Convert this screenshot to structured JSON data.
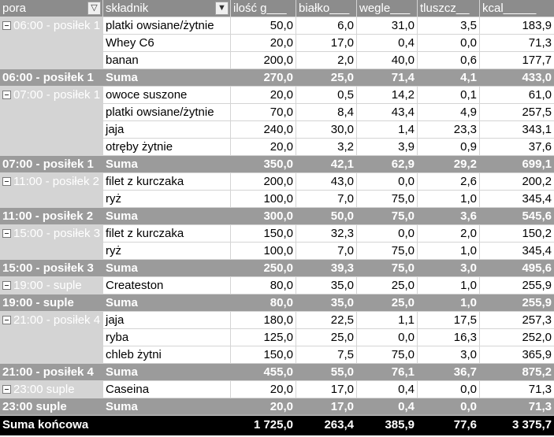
{
  "columns": [
    "pora",
    "składnik",
    "ilość g___",
    "białko___",
    "wegle___",
    "tluszcz__",
    "kcal_____"
  ],
  "rows": [
    {
      "type": "item",
      "pora": "06:00 - posiłek 1",
      "cells": [
        "platki owsiane/żytnie",
        "50,0",
        "6,0",
        "31,0",
        "3,5",
        "183,9"
      ]
    },
    {
      "type": "item",
      "pora": "",
      "cells": [
        "Whey C6",
        "20,0",
        "17,0",
        "0,4",
        "0,0",
        "71,3"
      ]
    },
    {
      "type": "item",
      "pora": "",
      "cells": [
        "banan",
        "200,0",
        "2,0",
        "40,0",
        "0,6",
        "177,7"
      ]
    },
    {
      "type": "sum",
      "pora": "06:00 - posiłek 1",
      "cells": [
        "Suma",
        "270,0",
        "25,0",
        "71,4",
        "4,1",
        "433,0"
      ]
    },
    {
      "type": "item",
      "pora": "07:00 - posiłek 1",
      "cells": [
        "owoce suszone",
        "20,0",
        "0,5",
        "14,2",
        "0,1",
        "61,0"
      ]
    },
    {
      "type": "item",
      "pora": "",
      "cells": [
        "platki owsiane/żytnie",
        "70,0",
        "8,4",
        "43,4",
        "4,9",
        "257,5"
      ]
    },
    {
      "type": "item",
      "pora": "",
      "cells": [
        "jaja",
        "240,0",
        "30,0",
        "1,4",
        "23,3",
        "343,1"
      ]
    },
    {
      "type": "item",
      "pora": "",
      "cells": [
        "otręby żytnie",
        "20,0",
        "3,2",
        "3,9",
        "0,9",
        "37,6"
      ]
    },
    {
      "type": "sum",
      "pora": "07:00 - posiłek 1",
      "cells": [
        "Suma",
        "350,0",
        "42,1",
        "62,9",
        "29,2",
        "699,1"
      ]
    },
    {
      "type": "item",
      "pora": "11:00 - posiłek 2",
      "cells": [
        "filet z kurczaka",
        "200,0",
        "43,0",
        "0,0",
        "2,6",
        "200,2"
      ]
    },
    {
      "type": "item",
      "pora": "",
      "cells": [
        "ryż",
        "100,0",
        "7,0",
        "75,0",
        "1,0",
        "345,4"
      ]
    },
    {
      "type": "sum",
      "pora": "11:00 - posiłek 2",
      "cells": [
        "Suma",
        "300,0",
        "50,0",
        "75,0",
        "3,6",
        "545,6"
      ]
    },
    {
      "type": "item",
      "pora": "15:00 - posiłek 3",
      "cells": [
        "filet z kurczaka",
        "150,0",
        "32,3",
        "0,0",
        "2,0",
        "150,2"
      ]
    },
    {
      "type": "item",
      "pora": "",
      "cells": [
        "ryż",
        "100,0",
        "7,0",
        "75,0",
        "1,0",
        "345,4"
      ]
    },
    {
      "type": "sum",
      "pora": "15:00 - posiłek 3",
      "cells": [
        "Suma",
        "250,0",
        "39,3",
        "75,0",
        "3,0",
        "495,6"
      ]
    },
    {
      "type": "item",
      "pora": "19:00 - suple",
      "cells": [
        "Createston",
        "80,0",
        "35,0",
        "25,0",
        "1,0",
        "255,9"
      ]
    },
    {
      "type": "sum",
      "pora": "19:00 - suple",
      "cells": [
        "Suma",
        "80,0",
        "35,0",
        "25,0",
        "1,0",
        "255,9"
      ]
    },
    {
      "type": "item",
      "pora": "21:00 - posiłek 4",
      "cells": [
        "jaja",
        "180,0",
        "22,5",
        "1,1",
        "17,5",
        "257,3"
      ]
    },
    {
      "type": "item",
      "pora": "",
      "cells": [
        "ryba",
        "125,0",
        "25,0",
        "0,0",
        "16,3",
        "252,0"
      ]
    },
    {
      "type": "item",
      "pora": "",
      "cells": [
        "chleb żytni",
        "150,0",
        "7,5",
        "75,0",
        "3,0",
        "365,9"
      ]
    },
    {
      "type": "sum",
      "pora": "21:00 - posiłek 4",
      "cells": [
        "Suma",
        "455,0",
        "55,0",
        "76,1",
        "36,7",
        "875,2"
      ]
    },
    {
      "type": "item",
      "pora": "23:00 suple",
      "cells": [
        "Caseina",
        "20,0",
        "17,0",
        "0,4",
        "0,0",
        "71,3"
      ]
    },
    {
      "type": "sum",
      "pora": "23:00 suple",
      "cells": [
        "Suma",
        "20,0",
        "17,0",
        "0,4",
        "0,0",
        "71,3"
      ]
    }
  ],
  "total": {
    "label": "Suma końcowa",
    "cells": [
      "1 725,0",
      "263,4",
      "385,9",
      "77,6",
      "3 375,7"
    ]
  },
  "icons": {
    "filter": "filter-icon",
    "dropdown": "dropdown-icon",
    "collapse": "collapse-minus-icon"
  }
}
